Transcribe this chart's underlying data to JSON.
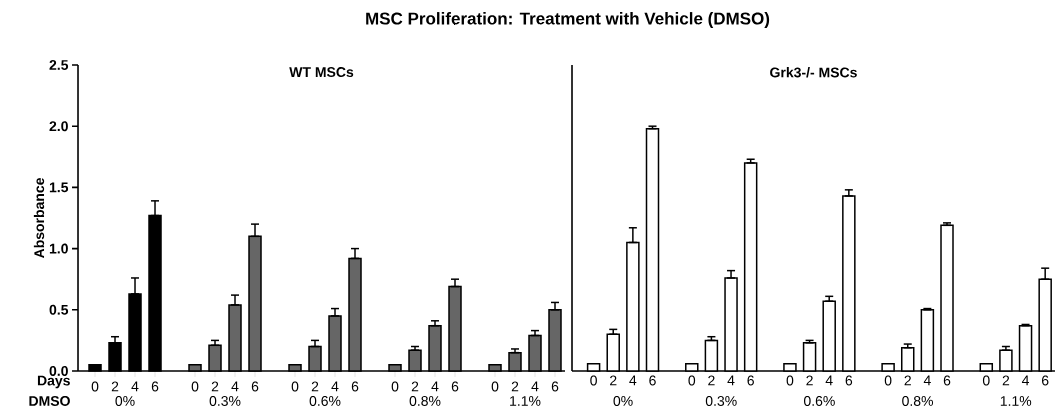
{
  "chart_data": [
    {
      "type": "bar",
      "title": "MSC Proliferation: Treatment with Vehicle (DMSO)",
      "subtitle": "WT MSCs",
      "ylabel": "Absorbance",
      "categories": [
        "0",
        "2",
        "4",
        "6",
        null,
        "0",
        "2",
        "4",
        "6",
        null,
        "0",
        "2",
        "4",
        "6",
        null,
        "0",
        "2",
        "4",
        "6",
        null,
        "0",
        "2",
        "4",
        "6"
      ],
      "values": [
        0.05,
        0.23,
        0.63,
        1.27,
        null,
        0.05,
        0.21,
        0.54,
        1.1,
        null,
        0.05,
        0.2,
        0.45,
        0.92,
        null,
        0.05,
        0.17,
        0.37,
        0.69,
        null,
        0.05,
        0.15,
        0.29,
        0.5
      ],
      "errors": [
        null,
        [
          0.23,
          0.28
        ],
        [
          0.63,
          0.76
        ],
        [
          1.27,
          1.39
        ],
        null,
        null,
        [
          0.21,
          0.25
        ],
        [
          0.54,
          0.62
        ],
        [
          1.1,
          1.2
        ],
        null,
        null,
        [
          0.2,
          0.25
        ],
        [
          0.45,
          0.51
        ],
        [
          0.92,
          1.0
        ],
        null,
        null,
        [
          0.17,
          0.2
        ],
        [
          0.37,
          0.41
        ],
        [
          0.69,
          0.75
        ],
        null,
        null,
        [
          0.15,
          0.18
        ],
        [
          0.29,
          0.33
        ],
        [
          0.5,
          0.56
        ]
      ],
      "colors": [
        "#000000",
        "#000000",
        "#000000",
        "#000000",
        null,
        "#666666",
        "#666666",
        "#666666",
        "#666666",
        null,
        "#666666",
        "#666666",
        "#666666",
        "#666666",
        null,
        "#666666",
        "#666666",
        "#666666",
        "#666666",
        null,
        "#666666",
        "#666666",
        "#666666",
        "#666666"
      ],
      "ylim": [
        0,
        2.5
      ],
      "yticks": [
        {
          "value": 0,
          "label": "0.0"
        },
        0.5,
        {
          "value": 1,
          "label": "1.0"
        },
        1.5,
        {
          "value": 2,
          "label": "2.0"
        },
        2.5
      ],
      "grid": false,
      "annotations": [
        "Days",
        "DMSO",
        "0%",
        "0.3%",
        "0.6%",
        "0.8%",
        "1.1%"
      ]
    },
    {
      "type": "bar",
      "subtitle": "Grk3-/- MSCs",
      "categories": [
        "0",
        "2",
        "4",
        "6",
        null,
        "0",
        "2",
        "4",
        "6",
        null,
        "0",
        "2",
        "4",
        "6",
        null,
        "0",
        "2",
        "4",
        "6",
        null,
        "0",
        "2",
        "4",
        "6"
      ],
      "values": [
        0.06,
        0.3,
        1.05,
        1.98,
        null,
        0.06,
        0.25,
        0.76,
        1.7,
        null,
        0.06,
        0.23,
        0.57,
        1.43,
        null,
        0.06,
        0.19,
        0.5,
        1.19,
        null,
        0.06,
        0.17,
        0.37,
        0.75
      ],
      "errors": [
        null,
        [
          0.3,
          0.34
        ],
        [
          1.05,
          1.17
        ],
        [
          1.98,
          2.0
        ],
        null,
        null,
        [
          0.25,
          0.28
        ],
        [
          0.76,
          0.82
        ],
        [
          1.7,
          1.73
        ],
        null,
        null,
        [
          0.23,
          0.25
        ],
        [
          0.57,
          0.61
        ],
        [
          1.43,
          1.48
        ],
        null,
        null,
        [
          0.19,
          0.22
        ],
        [
          0.5,
          0.51
        ],
        [
          1.19,
          1.21
        ],
        null,
        null,
        [
          0.17,
          0.2
        ],
        [
          0.37,
          0.38
        ],
        [
          0.75,
          0.84
        ]
      ],
      "colors": [
        "#ffffff",
        "#ffffff",
        "#ffffff",
        "#ffffff",
        null,
        "#ffffff",
        "#ffffff",
        "#ffffff",
        "#ffffff",
        null,
        "#ffffff",
        "#ffffff",
        "#ffffff",
        "#ffffff",
        null,
        "#ffffff",
        "#ffffff",
        "#ffffff",
        "#ffffff",
        null,
        "#ffffff",
        "#ffffff",
        "#ffffff",
        "#ffffff"
      ],
      "ylim": [
        0,
        2.5
      ],
      "grid": false,
      "tick_labels": "x",
      "annotations": [
        "0%",
        "0.3%",
        "0.6%",
        "0.8%",
        "1.1%"
      ]
    }
  ]
}
